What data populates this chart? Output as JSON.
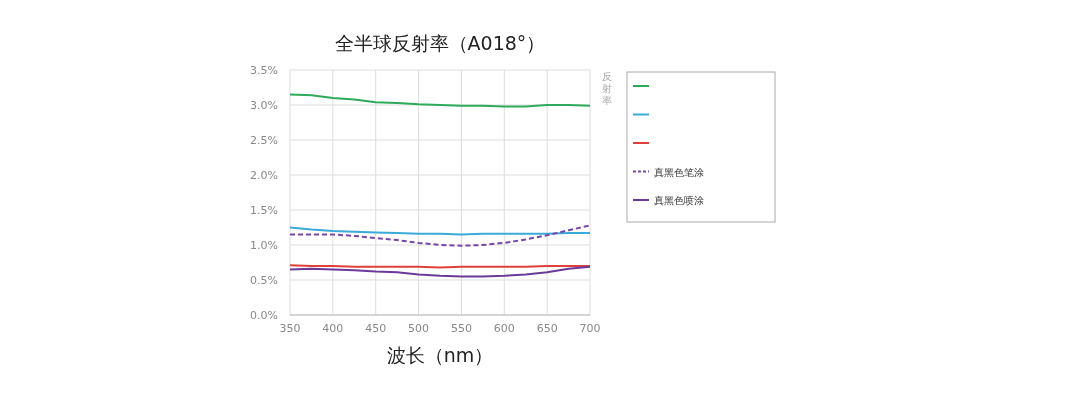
{
  "chart_data": {
    "type": "line",
    "title": "全半球反射率（A018°）",
    "xlabel": "波长（nm）",
    "ylabel": "反射率",
    "x": [
      350,
      375,
      400,
      425,
      450,
      475,
      500,
      525,
      550,
      575,
      600,
      625,
      650,
      675,
      700
    ],
    "xlim": [
      350,
      700
    ],
    "xticks": [
      350,
      400,
      450,
      500,
      550,
      600,
      650,
      700
    ],
    "ylim": [
      0,
      3.5
    ],
    "yticks": [
      {
        "value": 0,
        "label": "0.0%"
      },
      {
        "value": 0.5,
        "label": "0.5%"
      },
      {
        "value": 1,
        "label": "1.0%"
      },
      {
        "value": 1.5,
        "label": "1.5%"
      },
      {
        "value": 2,
        "label": "2.0%"
      },
      {
        "value": 2.5,
        "label": "2.5%"
      },
      {
        "value": 3,
        "label": "3.0%"
      },
      {
        "value": 3.5,
        "label": "3.5%"
      }
    ],
    "grid": true,
    "legend": "right",
    "marker": "none",
    "series": [
      {
        "color": "#2eaa5a",
        "values": [
          3.15,
          3.14,
          3.1,
          3.08,
          3.04,
          3.03,
          3.01,
          3.0,
          2.99,
          2.99,
          2.98,
          2.98,
          3.0,
          3.0,
          2.99
        ]
      },
      {
        "color": "#3aaad8",
        "values": [
          1.25,
          1.22,
          1.2,
          1.19,
          1.18,
          1.17,
          1.16,
          1.16,
          1.15,
          1.16,
          1.16,
          1.16,
          1.16,
          1.17,
          1.17
        ]
      },
      {
        "color": "#e0403a",
        "values": [
          0.71,
          0.7,
          0.7,
          0.69,
          0.69,
          0.69,
          0.69,
          0.68,
          0.69,
          0.69,
          0.69,
          0.69,
          0.7,
          0.7,
          0.7
        ]
      },
      {
        "name": "真黑色笔涂",
        "color": "#7a44a8",
        "line_style": "dashed",
        "values": [
          1.15,
          1.15,
          1.15,
          1.13,
          1.1,
          1.07,
          1.03,
          1.0,
          0.99,
          1.0,
          1.03,
          1.08,
          1.14,
          1.21,
          1.28
        ]
      },
      {
        "name": "真黑色喷涂",
        "color": "#6a3a9a",
        "line_style": "solid",
        "values": [
          0.65,
          0.66,
          0.65,
          0.64,
          0.62,
          0.61,
          0.58,
          0.56,
          0.55,
          0.55,
          0.56,
          0.58,
          0.61,
          0.66,
          0.69
        ]
      }
    ]
  }
}
